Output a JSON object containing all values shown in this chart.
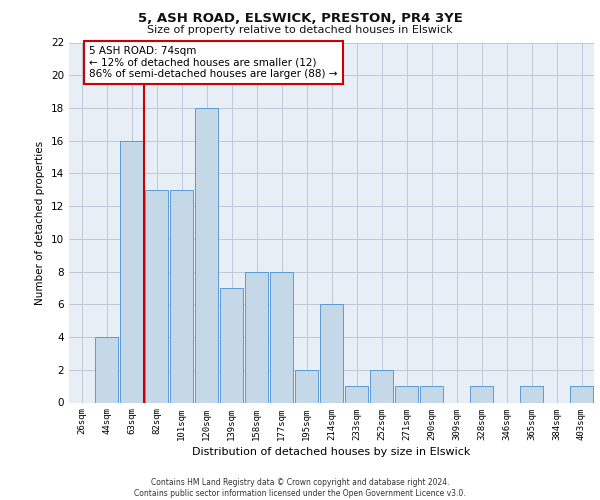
{
  "title1": "5, ASH ROAD, ELSWICK, PRESTON, PR4 3YE",
  "title2": "Size of property relative to detached houses in Elswick",
  "xlabel": "Distribution of detached houses by size in Elswick",
  "ylabel": "Number of detached properties",
  "categories": [
    "26sqm",
    "44sqm",
    "63sqm",
    "82sqm",
    "101sqm",
    "120sqm",
    "139sqm",
    "158sqm",
    "177sqm",
    "195sqm",
    "214sqm",
    "233sqm",
    "252sqm",
    "271sqm",
    "290sqm",
    "309sqm",
    "328sqm",
    "346sqm",
    "365sqm",
    "384sqm",
    "403sqm"
  ],
  "values": [
    0,
    4,
    16,
    13,
    13,
    18,
    7,
    8,
    8,
    2,
    6,
    1,
    2,
    1,
    1,
    0,
    1,
    0,
    1,
    0,
    1
  ],
  "bar_color": "#c5d8e8",
  "bar_edge_color": "#5b9bd5",
  "annotation_text": "5 ASH ROAD: 74sqm\n← 12% of detached houses are smaller (12)\n86% of semi-detached houses are larger (88) →",
  "annotation_box_color": "#ffffff",
  "annotation_box_edge_color": "#cc0000",
  "marker_line_color": "#cc0000",
  "ylim": [
    0,
    22
  ],
  "yticks": [
    0,
    2,
    4,
    6,
    8,
    10,
    12,
    14,
    16,
    18,
    20,
    22
  ],
  "grid_color": "#c0c8d8",
  "bg_color": "#e8eef5",
  "footer1": "Contains HM Land Registry data © Crown copyright and database right 2024.",
  "footer2": "Contains public sector information licensed under the Open Government Licence v3.0."
}
